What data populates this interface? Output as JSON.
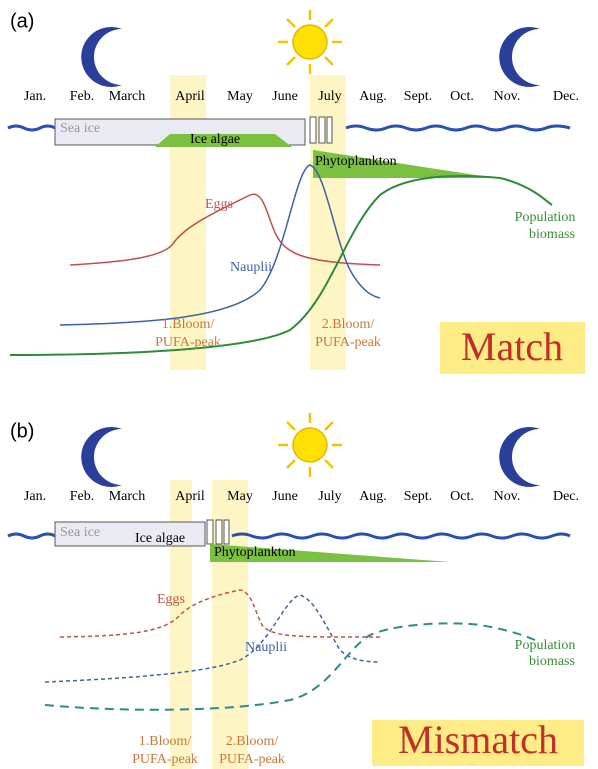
{
  "panels": [
    {
      "label": "(a)",
      "months": [
        "Jan.",
        "Feb.",
        "March",
        "April",
        "May",
        "June",
        "July",
        "Aug.",
        "Sept.",
        "Oct.",
        "Nov.",
        "Dec."
      ],
      "sea_ice": "Sea ice",
      "ice_algae": "Ice algae",
      "phytoplankton": "Phytoplankton",
      "eggs": "Eggs",
      "nauplii": "Nauplii",
      "population_biomass": [
        "Population",
        "biomass"
      ],
      "bloom1": [
        "1.Bloom/",
        "PUFA-peak"
      ],
      "bloom2": [
        "2.Bloom/",
        "PUFA-peak"
      ],
      "verdict": "Match"
    },
    {
      "label": "(b)",
      "months": [
        "Jan.",
        "Feb.",
        "March",
        "April",
        "May",
        "June",
        "July",
        "Aug.",
        "Sept.",
        "Oct.",
        "Nov.",
        "Dec."
      ],
      "sea_ice": "Sea ice",
      "ice_algae": "Ice algae",
      "phytoplankton": "Phytoplankton",
      "eggs": "Eggs",
      "nauplii": "Nauplii",
      "population_biomass": [
        "Population",
        "biomass"
      ],
      "bloom1": [
        "1.Bloom/",
        "PUFA-peak"
      ],
      "bloom2": [
        "2.Bloom/",
        "PUFA-peak"
      ],
      "verdict": "Mismatch"
    }
  ]
}
